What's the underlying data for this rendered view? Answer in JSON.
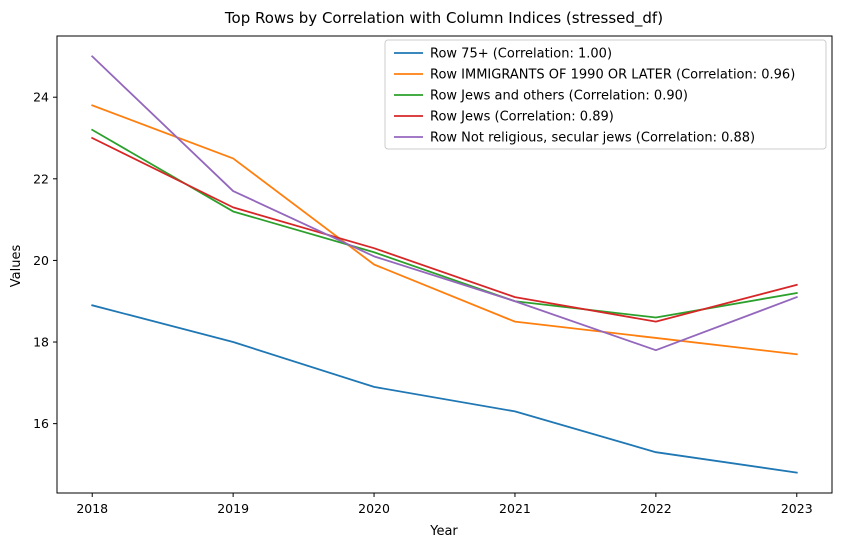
{
  "chart_data": {
    "type": "line",
    "title": "Top Rows by Correlation with Column Indices (stressed_df)",
    "xlabel": "Year",
    "ylabel": "Values",
    "x": [
      2018,
      2019,
      2020,
      2021,
      2022,
      2023
    ],
    "xlim": [
      2017.75,
      2023.25
    ],
    "ylim": [
      14.3,
      25.5
    ],
    "yticks": [
      16,
      18,
      20,
      22,
      24
    ],
    "grid": false,
    "legend_position": "top-right",
    "series": [
      {
        "name": "Row 75+ (Correlation: 1.00)",
        "color": "#1f77b4",
        "values": [
          18.9,
          18.0,
          16.9,
          16.3,
          15.3,
          14.8
        ]
      },
      {
        "name": "Row IMMIGRANTS OF 1990 OR LATER (Correlation: 0.96)",
        "color": "#ff7f0e",
        "values": [
          23.8,
          22.5,
          19.9,
          18.5,
          18.1,
          17.7
        ]
      },
      {
        "name": "Row Jews and others (Correlation: 0.90)",
        "color": "#2ca02c",
        "values": [
          23.2,
          21.2,
          20.2,
          19.0,
          18.6,
          19.2
        ]
      },
      {
        "name": "Row Jews (Correlation: 0.89)",
        "color": "#d62728",
        "values": [
          23.0,
          21.3,
          20.3,
          19.1,
          18.5,
          19.4
        ]
      },
      {
        "name": "Row Not religious, secular jews (Correlation: 0.88)",
        "color": "#9467bd",
        "values": [
          25.0,
          21.7,
          20.1,
          19.0,
          17.8,
          19.1
        ]
      }
    ]
  }
}
